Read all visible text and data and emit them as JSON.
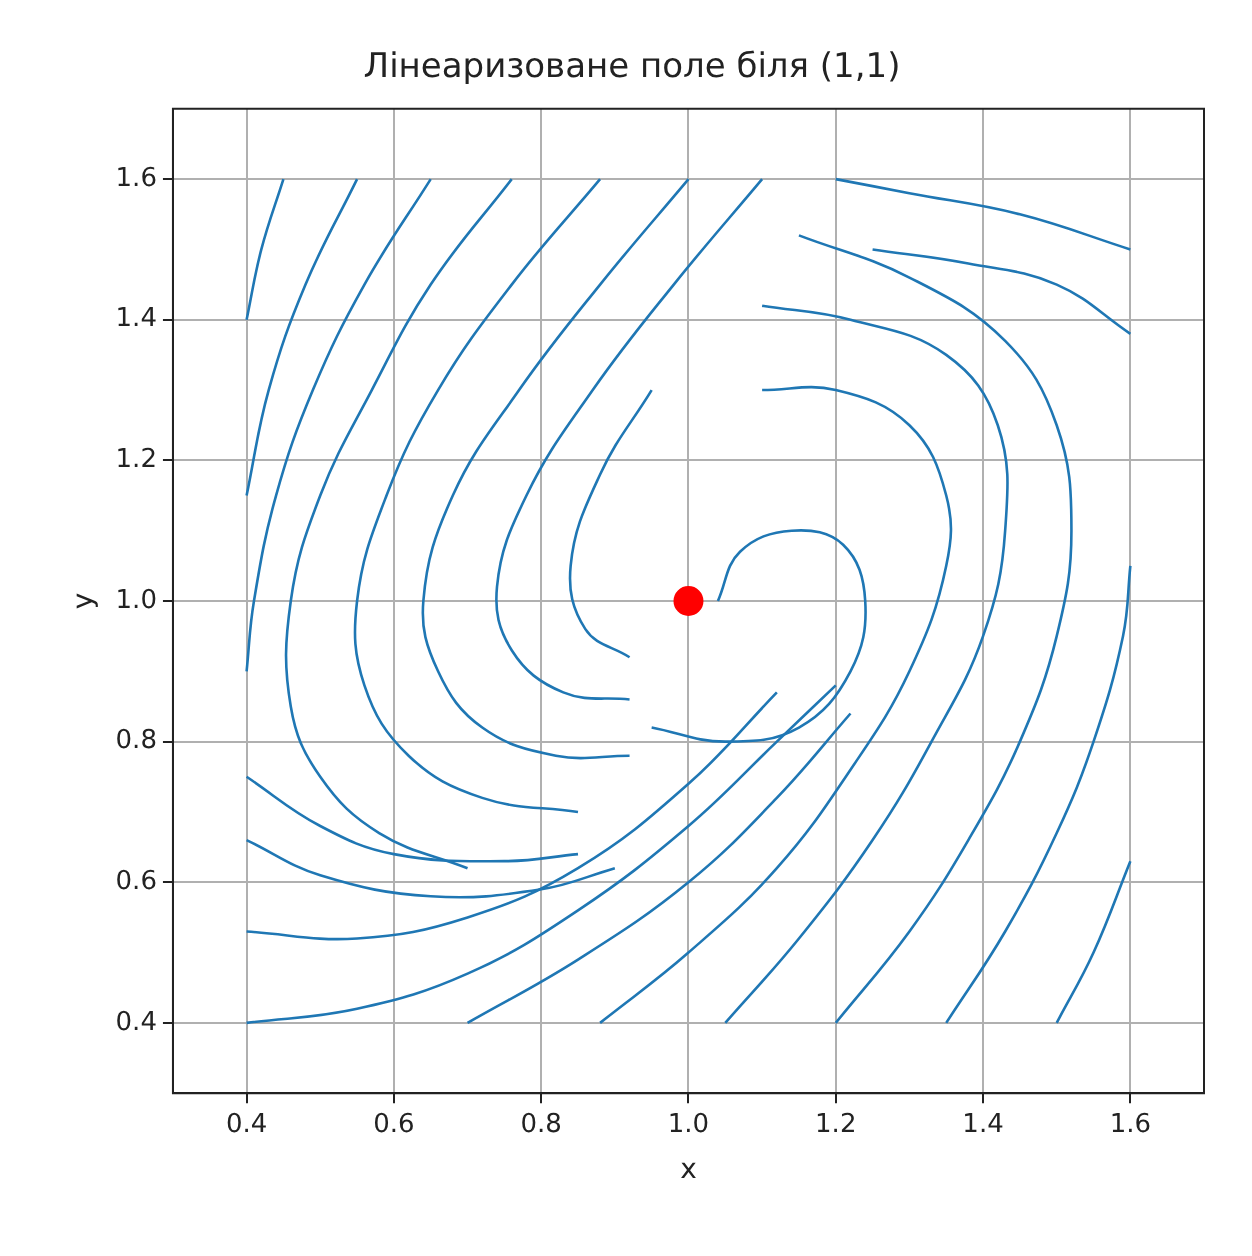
{
  "chart_data": {
    "type": "line",
    "title": "Лінеаризоване поле біля (1,1)",
    "xlabel": "x",
    "ylabel": "y",
    "xlim": [
      0.3,
      1.7
    ],
    "ylim": [
      0.3,
      1.7
    ],
    "xticks": [
      0.4,
      0.6,
      0.8,
      {
        "value": 1,
        "label": "1.0"
      },
      1.2,
      1.4,
      1.6
    ],
    "yticks": [
      0.4,
      0.6,
      0.8,
      {
        "value": 1,
        "label": "1.0"
      },
      1.2,
      1.4,
      1.6
    ],
    "grid": true,
    "legend": false,
    "marker": "none",
    "line_style": "solid",
    "series": [
      {
        "color": "#1f77b4",
        "x": [
          0.45,
          0.42,
          0.4
        ],
        "values": [
          1.6,
          1.5,
          1.4
        ]
      },
      {
        "type": "line",
        "color": "#1f77b4",
        "x": [
          0.55,
          0.48,
          0.43,
          0.4
        ],
        "values": [
          1.6,
          1.45,
          1.3,
          1.15
        ]
      },
      {
        "type": "line",
        "color": "#1f77b4",
        "x": [
          0.65,
          0.56,
          0.49,
          0.44,
          0.41,
          0.4
        ],
        "values": [
          1.6,
          1.45,
          1.3,
          1.15,
          1.0,
          0.9
        ]
      },
      {
        "type": "line",
        "color": "#1f77b4",
        "x": [
          0.76,
          0.65,
          0.57,
          0.5,
          0.46,
          0.46,
          0.5,
          0.58,
          0.7
        ],
        "values": [
          1.6,
          1.45,
          1.3,
          1.15,
          1.0,
          0.85,
          0.75,
          0.67,
          0.62
        ]
      },
      {
        "type": "line",
        "color": "#1f77b4",
        "x": [
          0.88,
          0.76,
          0.66,
          0.59,
          0.55,
          0.56,
          0.62,
          0.72,
          0.85
        ],
        "values": [
          1.6,
          1.45,
          1.3,
          1.15,
          1.0,
          0.88,
          0.78,
          0.72,
          0.7
        ]
      },
      {
        "type": "line",
        "color": "#1f77b4",
        "x": [
          1.0,
          0.88,
          0.77,
          0.68,
          0.64,
          0.66,
          0.72,
          0.82,
          0.92
        ],
        "values": [
          1.6,
          1.45,
          1.3,
          1.15,
          1.0,
          0.9,
          0.82,
          0.78,
          0.78
        ]
      },
      {
        "type": "line",
        "color": "#1f77b4",
        "x": [
          1.1,
          0.98,
          0.87,
          0.78,
          0.74,
          0.76,
          0.83,
          0.92
        ],
        "values": [
          1.6,
          1.45,
          1.3,
          1.15,
          1.02,
          0.93,
          0.87,
          0.86
        ]
      },
      {
        "type": "line",
        "color": "#1f77b4",
        "x": [
          0.95,
          0.88,
          0.84,
          0.86,
          0.92
        ],
        "values": [
          1.3,
          1.18,
          1.05,
          0.96,
          0.92
        ]
      },
      {
        "type": "line",
        "color": "#1f77b4",
        "x": [
          0.4,
          0.5,
          0.6,
          0.75,
          0.85
        ],
        "values": [
          0.75,
          0.68,
          0.64,
          0.63,
          0.64
        ]
      },
      {
        "type": "line",
        "color": "#1f77b4",
        "x": [
          0.4,
          0.5,
          0.65,
          0.8,
          0.9
        ],
        "values": [
          0.66,
          0.61,
          0.58,
          0.59,
          0.62
        ]
      },
      {
        "type": "line",
        "color": "#1f77b4",
        "x": [
          0.4,
          0.55,
          0.7,
          0.85,
          1.0,
          1.12
        ],
        "values": [
          0.53,
          0.52,
          0.55,
          0.62,
          0.74,
          0.87
        ]
      },
      {
        "type": "line",
        "color": "#1f77b4",
        "x": [
          0.4,
          0.55,
          0.7,
          0.85,
          1.0,
          1.12,
          1.2
        ],
        "values": [
          0.4,
          0.42,
          0.47,
          0.56,
          0.68,
          0.8,
          0.88
        ]
      },
      {
        "type": "line",
        "color": "#1f77b4",
        "x": [
          0.7,
          0.85,
          1.0,
          1.12,
          1.22
        ],
        "values": [
          0.4,
          0.49,
          0.6,
          0.72,
          0.84
        ]
      },
      {
        "type": "line",
        "color": "#1f77b4",
        "x": [
          0.88,
          1.0,
          1.12,
          1.22,
          1.3,
          1.35,
          1.35,
          1.3,
          1.2,
          1.1
        ],
        "values": [
          0.4,
          0.5,
          0.62,
          0.76,
          0.9,
          1.05,
          1.15,
          1.25,
          1.3,
          1.3
        ]
      },
      {
        "type": "line",
        "color": "#1f77b4",
        "x": [
          1.05,
          1.15,
          1.25,
          1.33,
          1.4,
          1.43,
          1.42,
          1.35,
          1.22,
          1.1
        ],
        "values": [
          0.4,
          0.52,
          0.66,
          0.8,
          0.95,
          1.1,
          1.25,
          1.35,
          1.4,
          1.42
        ]
      },
      {
        "type": "line",
        "color": "#1f77b4",
        "x": [
          1.2,
          1.3,
          1.38,
          1.45,
          1.5,
          1.52,
          1.5,
          1.43,
          1.3,
          1.15
        ],
        "values": [
          0.4,
          0.53,
          0.66,
          0.8,
          0.95,
          1.1,
          1.25,
          1.37,
          1.46,
          1.52
        ]
      },
      {
        "type": "line",
        "color": "#1f77b4",
        "x": [
          1.35,
          1.43,
          1.5,
          1.55,
          1.59,
          1.6
        ],
        "values": [
          0.4,
          0.53,
          0.67,
          0.8,
          0.95,
          1.05
        ]
      },
      {
        "type": "line",
        "color": "#1f77b4",
        "x": [
          1.5,
          1.55,
          1.6
        ],
        "values": [
          0.4,
          0.5,
          0.63
        ]
      },
      {
        "type": "line",
        "color": "#1f77b4",
        "x": [
          1.6,
          1.45,
          1.3,
          1.2
        ],
        "values": [
          1.5,
          1.55,
          1.58,
          1.6
        ]
      },
      {
        "type": "line",
        "color": "#1f77b4",
        "x": [
          1.6,
          1.5,
          1.38,
          1.25
        ],
        "values": [
          1.38,
          1.45,
          1.48,
          1.5
        ]
      },
      {
        "type": "line",
        "color": "#1f77b4",
        "x": [
          1.04,
          1.07,
          1.14,
          1.21,
          1.24,
          1.22,
          1.15,
          1.05,
          0.95
        ],
        "values": [
          1.0,
          1.07,
          1.1,
          1.08,
          1.0,
          0.9,
          0.82,
          0.8,
          0.82
        ]
      },
      {
        "type": "scatter",
        "color": "#ff0000",
        "marker": "circle",
        "x": [
          1.0
        ],
        "values": [
          1.0
        ]
      }
    ]
  }
}
